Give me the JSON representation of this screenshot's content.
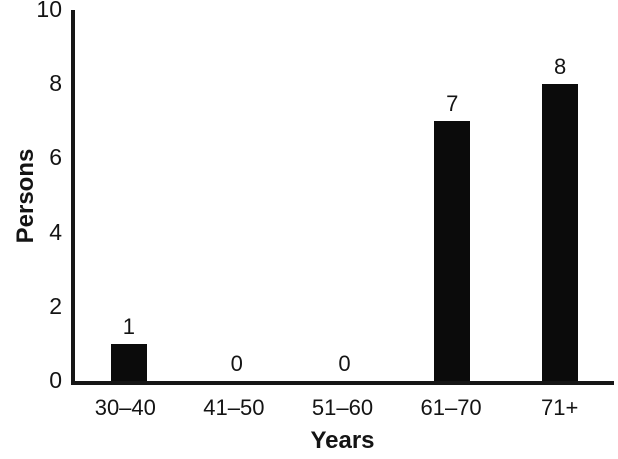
{
  "chart_data": {
    "type": "bar",
    "title": "",
    "xlabel": "Years",
    "ylabel": "Persons",
    "categories": [
      "30–40",
      "41–50",
      "51–60",
      "61–70",
      "71+"
    ],
    "values": [
      1,
      0,
      0,
      7,
      8
    ],
    "bar_labels": [
      "1",
      "0",
      "0",
      "7",
      "8"
    ],
    "ylim": [
      0,
      10
    ],
    "yticks": [
      0,
      2,
      4,
      6,
      8,
      10
    ],
    "grid": false,
    "legend": "none",
    "bar_color": "#0b0b0b",
    "axis_color": "#161616",
    "background": "#ffffff"
  }
}
